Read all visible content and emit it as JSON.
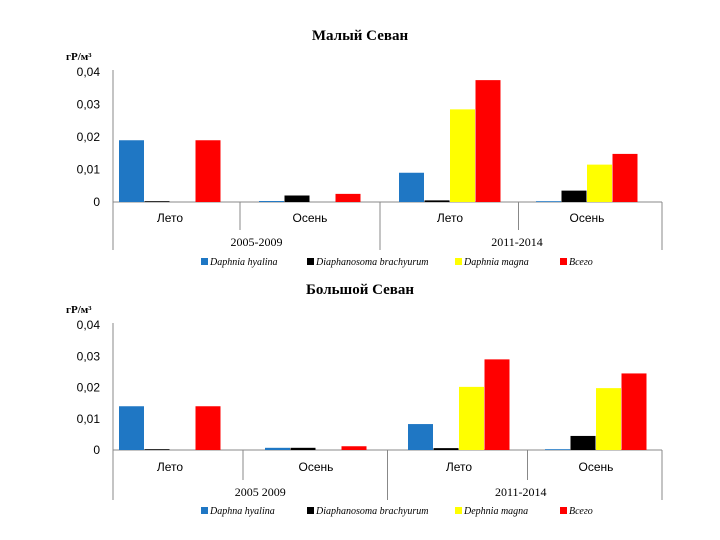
{
  "chart_data": [
    {
      "type": "bar",
      "title": "Малый Севан",
      "ylabel": "гР/м³",
      "ylim": [
        0,
        0.04
      ],
      "yticks": [
        "0",
        "0,01",
        "0,02",
        "0,03",
        "0,04"
      ],
      "categories": [
        "Лето",
        "Осень",
        "Лето",
        "Осень"
      ],
      "periods": [
        "2005-2009",
        "2011-2014"
      ],
      "series": [
        {
          "name": "Daphnia hyalina",
          "color": "#1f77c4",
          "values": [
            0.019,
            0.0003,
            0.009,
            0.0002
          ]
        },
        {
          "name": "Diaphanosoma brachyurum",
          "color": "#000000",
          "values": [
            0.0002,
            0.002,
            0.0005,
            0.0035
          ]
        },
        {
          "name": "Daphnia magna",
          "color": "#ffff00",
          "values": [
            0,
            0,
            0.0285,
            0.0115
          ]
        },
        {
          "name": "Всего",
          "color": "#ff0000",
          "values": [
            0.019,
            0.0025,
            0.0375,
            0.0148
          ]
        }
      ],
      "legend_position": "bottom"
    },
    {
      "type": "bar",
      "title": "Большой Севан",
      "ylabel": "гР/м³",
      "ylim": [
        0,
        0.04
      ],
      "yticks": [
        "0",
        "0,01",
        "0,02",
        "0,03",
        "0,04"
      ],
      "categories": [
        "Лето",
        "Осень",
        "Лето",
        "Осень"
      ],
      "periods": [
        "2005  2009",
        "2011-2014"
      ],
      "series": [
        {
          "name": "Daphna hyalina",
          "color": "#1f77c4",
          "values": [
            0.014,
            0.0007,
            0.0083,
            0.0002
          ]
        },
        {
          "name": "Diaphanosoma brachyurum",
          "color": "#000000",
          "values": [
            0.0002,
            0.0007,
            0.0006,
            0.0045
          ]
        },
        {
          "name": "Dephnia magna",
          "color": "#ffff00",
          "values": [
            0,
            0,
            0.0202,
            0.0198
          ]
        },
        {
          "name": "Всего",
          "color": "#ff0000",
          "values": [
            0.014,
            0.0012,
            0.029,
            0.0245
          ]
        }
      ],
      "legend_position": "bottom"
    }
  ]
}
